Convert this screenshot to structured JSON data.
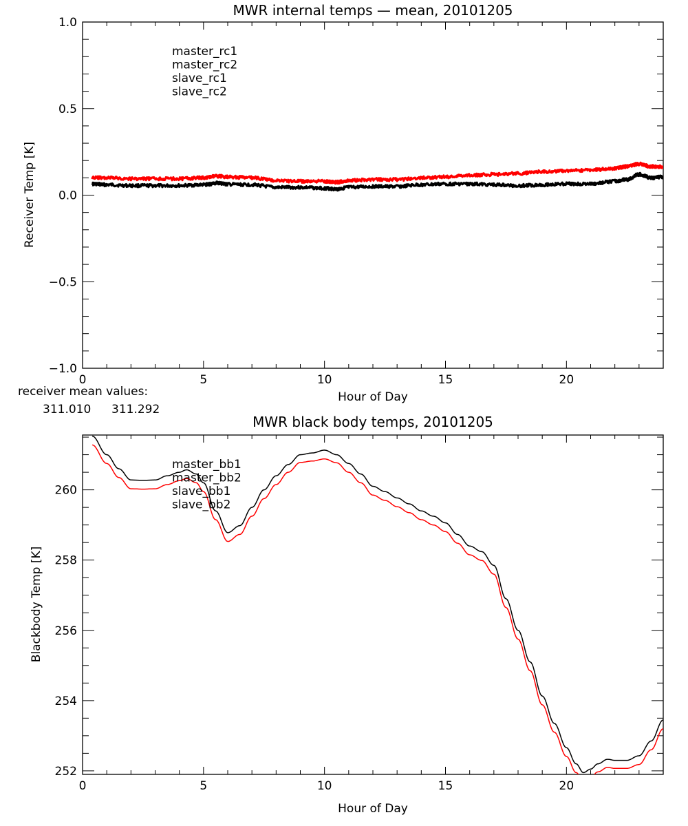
{
  "colors": {
    "black": "#000000",
    "red": "#ff0000",
    "blue": "#2020d0",
    "green": "#20e020"
  },
  "mean_values": {
    "label": "receiver mean values:",
    "values": [
      {
        "text": "311.010",
        "color": "#000000"
      },
      {
        "text": "311.292",
        "color": "#ff0000"
      }
    ]
  },
  "chart_data": [
    {
      "type": "line",
      "title": "MWR internal temps — mean, 20101205",
      "xlabel": "Hour of Day",
      "ylabel": "Receiver Temp [K]",
      "xlim": [
        0,
        24
      ],
      "ylim": [
        -1.0,
        1.0
      ],
      "xticks": [
        0,
        5,
        10,
        15,
        20
      ],
      "xtick_labels": [
        "0",
        "5",
        "10",
        "15",
        "20"
      ],
      "yticks": [
        -1.0,
        -0.5,
        0.0,
        0.5,
        1.0
      ],
      "ytick_labels": [
        "−1.0",
        "−0.5",
        "0.0",
        "0.5",
        "1.0"
      ],
      "grid": false,
      "legend_position": "top-left",
      "legend": [
        {
          "name": "master_rc1",
          "color": "#000000"
        },
        {
          "name": "master_rc2",
          "color": "#ff0000"
        },
        {
          "name": "slave_rc1",
          "color": "#2020d0"
        },
        {
          "name": "slave_rc2",
          "color": "#20e020"
        }
      ],
      "x": [
        0.4,
        1,
        2,
        3,
        4,
        5,
        5.6,
        6,
        7,
        8,
        9,
        10,
        10.5,
        11,
        12,
        13,
        14,
        15,
        16,
        17,
        18,
        19,
        20,
        21,
        22,
        22.5,
        23,
        23.5,
        24
      ],
      "series": [
        {
          "name": "master_rc1",
          "color": "#000000",
          "values": [
            0.065,
            0.06,
            0.055,
            0.055,
            0.055,
            0.06,
            0.07,
            0.062,
            0.06,
            0.045,
            0.045,
            0.04,
            0.035,
            0.045,
            0.05,
            0.05,
            0.06,
            0.065,
            0.065,
            0.06,
            0.055,
            0.06,
            0.065,
            0.065,
            0.08,
            0.09,
            0.12,
            0.1,
            0.105
          ]
        },
        {
          "name": "master_rc2",
          "color": "#ff0000",
          "values": [
            0.1,
            0.1,
            0.095,
            0.095,
            0.095,
            0.1,
            0.11,
            0.105,
            0.1,
            0.085,
            0.08,
            0.08,
            0.075,
            0.085,
            0.09,
            0.09,
            0.1,
            0.105,
            0.115,
            0.12,
            0.125,
            0.135,
            0.14,
            0.145,
            0.155,
            0.165,
            0.18,
            0.165,
            0.165
          ]
        }
      ]
    },
    {
      "type": "line",
      "title": "MWR black body temps, 20101205",
      "xlabel": "Hour of Day",
      "ylabel": "Blackbody Temp [K]",
      "xlim": [
        0,
        24
      ],
      "ylim": [
        251.9,
        261.56
      ],
      "xticks": [
        0,
        5,
        10,
        15,
        20
      ],
      "xtick_labels": [
        "0",
        "5",
        "10",
        "15",
        "20"
      ],
      "yticks": [
        252,
        254,
        256,
        258,
        260
      ],
      "ytick_labels": [
        "252",
        "254",
        "256",
        "258",
        "260"
      ],
      "grid": false,
      "legend_position": "top-left",
      "legend": [
        {
          "name": "master_bb1",
          "color": "#000000"
        },
        {
          "name": "master_bb2",
          "color": "#ff0000"
        },
        {
          "name": "slave_bb1",
          "color": "#2020d0"
        },
        {
          "name": "slave_bb2",
          "color": "#20e020"
        }
      ],
      "x": [
        0.4,
        1,
        1.5,
        2,
        2.5,
        3,
        3.5,
        4,
        4.3,
        4.7,
        5,
        5.5,
        6,
        6.5,
        7,
        7.5,
        8,
        8.5,
        9,
        9.5,
        10,
        10.5,
        11,
        11.5,
        12,
        12.5,
        13,
        13.5,
        14,
        14.5,
        15,
        15.5,
        16,
        16.5,
        17,
        17.5,
        18,
        18.5,
        19,
        19.5,
        20,
        20.4,
        20.7,
        21,
        21.3,
        21.7,
        22,
        22.5,
        23,
        23.5,
        24
      ],
      "series": [
        {
          "name": "master_bb1",
          "color": "#000000",
          "values": [
            261.53,
            261.0,
            260.6,
            260.28,
            260.27,
            260.28,
            260.4,
            260.5,
            260.57,
            260.45,
            260.2,
            259.4,
            258.78,
            258.98,
            259.5,
            260.0,
            260.4,
            260.72,
            261.0,
            261.05,
            261.13,
            261.0,
            260.75,
            260.45,
            260.1,
            259.95,
            259.77,
            259.6,
            259.4,
            259.25,
            259.06,
            258.73,
            258.4,
            258.24,
            257.85,
            256.9,
            256.0,
            255.1,
            254.13,
            253.35,
            252.66,
            252.2,
            251.95,
            252.05,
            252.2,
            252.33,
            252.3,
            252.3,
            252.43,
            252.85,
            253.45
          ]
        },
        {
          "name": "master_bb2",
          "color": "#ff0000",
          "values": [
            261.28,
            260.75,
            260.35,
            260.03,
            260.02,
            260.03,
            260.15,
            260.26,
            260.32,
            260.2,
            259.95,
            259.15,
            258.53,
            258.73,
            259.25,
            259.75,
            260.15,
            260.5,
            260.78,
            260.82,
            260.88,
            260.77,
            260.5,
            260.2,
            259.85,
            259.7,
            259.52,
            259.35,
            259.15,
            259.0,
            258.81,
            258.48,
            258.15,
            257.99,
            257.6,
            256.65,
            255.75,
            254.85,
            253.88,
            253.1,
            252.41,
            251.95,
            251.72,
            251.82,
            251.97,
            252.1,
            252.07,
            252.07,
            252.18,
            252.6,
            253.2
          ]
        }
      ]
    }
  ]
}
